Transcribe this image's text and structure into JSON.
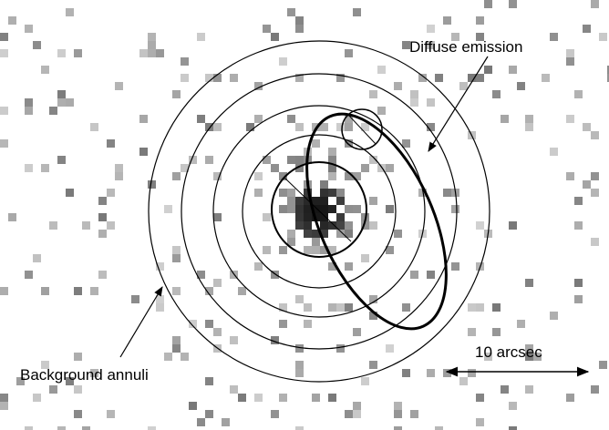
{
  "annotations": {
    "diffuse": "Diffuse emission",
    "annuli": "Background annuli",
    "scale": "10 arcsec"
  }
}
